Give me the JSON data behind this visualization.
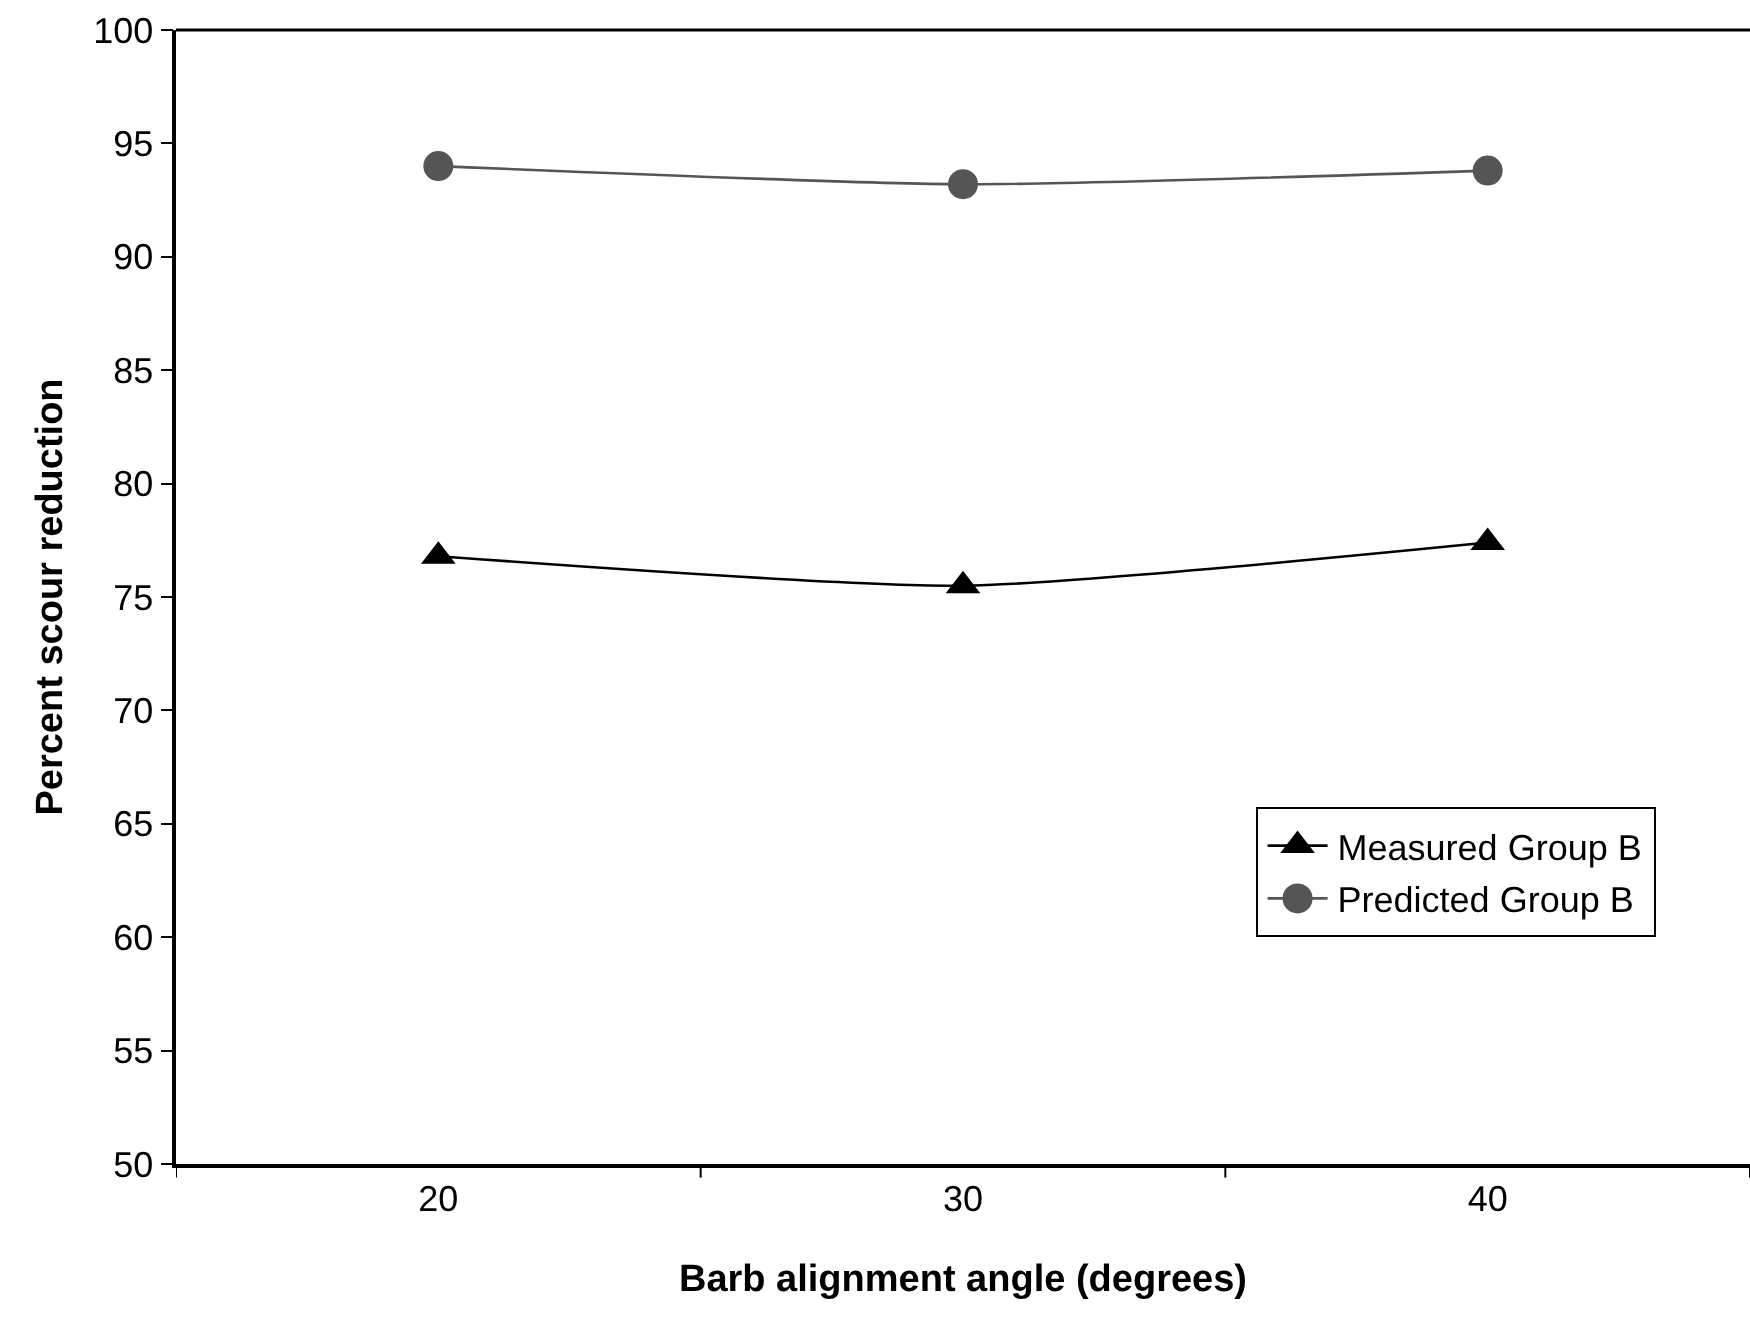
{
  "chart_data": {
    "type": "line",
    "xlabel": "Barb alignment angle (degrees)",
    "ylabel": "Percent scour reduction",
    "categories": [
      "20",
      "30",
      "40"
    ],
    "series": [
      {
        "name": "Measured Group B",
        "color": "#000000",
        "marker": "triangle",
        "values": [
          76.8,
          75.5,
          77.4
        ]
      },
      {
        "name": "Predicted Group B",
        "color": "#555555",
        "marker": "circle",
        "values": [
          94.0,
          93.2,
          93.8
        ]
      }
    ],
    "ylim": [
      50,
      100
    ],
    "yticks": [
      50,
      55,
      60,
      65,
      70,
      75,
      80,
      85,
      90,
      95,
      100
    ],
    "grid": false,
    "legend": "bottom right",
    "line_style": "solid"
  }
}
